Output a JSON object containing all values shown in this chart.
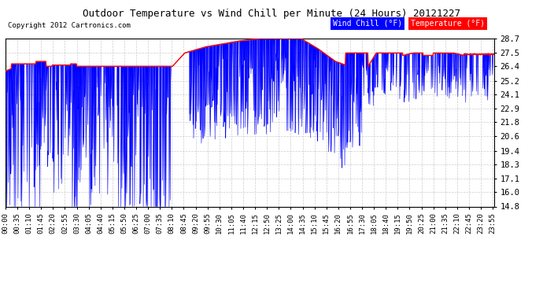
{
  "title": "Outdoor Temperature vs Wind Chill per Minute (24 Hours) 20121227",
  "copyright": "Copyright 2012 Cartronics.com",
  "yticks": [
    28.7,
    27.5,
    26.4,
    25.2,
    24.1,
    22.9,
    21.8,
    20.6,
    19.4,
    18.3,
    17.1,
    16.0,
    14.8
  ],
  "ylim": [
    14.8,
    28.7
  ],
  "background_color": "#ffffff",
  "plot_bg_color": "#ffffff",
  "grid_color": "#cccccc",
  "wind_chill_color": "#0000ff",
  "temp_color": "#ff0000",
  "xtick_labels": [
    "00:00",
    "00:35",
    "01:10",
    "01:45",
    "02:20",
    "02:55",
    "03:30",
    "04:05",
    "04:40",
    "05:15",
    "05:50",
    "06:25",
    "07:00",
    "07:35",
    "08:10",
    "08:45",
    "09:20",
    "09:55",
    "10:30",
    "11:05",
    "11:40",
    "12:15",
    "12:50",
    "13:25",
    "14:00",
    "14:35",
    "15:10",
    "15:45",
    "16:20",
    "16:55",
    "17:30",
    "18:05",
    "18:40",
    "19:15",
    "19:50",
    "20:25",
    "21:00",
    "21:35",
    "22:10",
    "22:45",
    "23:20",
    "23:55"
  ]
}
